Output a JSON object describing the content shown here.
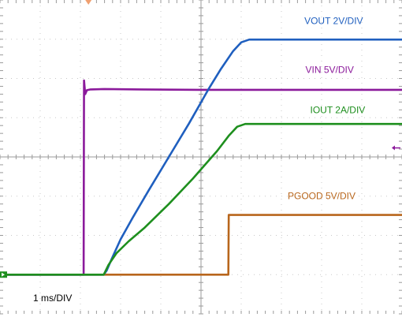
{
  "chart_data": {
    "type": "line",
    "title": "",
    "xlabel": "",
    "ylabel": "",
    "grid": true,
    "timebase_label": "1 ms/DIV",
    "x_unit": "ms",
    "xlim": [
      0,
      10
    ],
    "ylim": [
      -4,
      4
    ],
    "series": [
      {
        "name": "VOUT 2V/DIV",
        "color": "#1f5fbf",
        "label_pos": [
          8.3,
          3.39
        ],
        "x": [
          0,
          2.58,
          2.65,
          2.8,
          3.0,
          3.3,
          3.7,
          4.2,
          4.7,
          5.2,
          5.5,
          5.8,
          6.0,
          6.2,
          10
        ],
        "y": [
          -3.0,
          -3.0,
          -2.9,
          -2.55,
          -2.1,
          -1.55,
          -0.85,
          0.0,
          0.85,
          1.75,
          2.25,
          2.7,
          2.92,
          2.99,
          2.99
        ]
      },
      {
        "name": "VIN 5V/DIV",
        "color": "#8b1a9b",
        "label_pos": [
          8.2,
          2.14
        ],
        "x": [
          0,
          2.08,
          2.09,
          2.12,
          2.16,
          2.25,
          2.6,
          3.5,
          5.0,
          6.5,
          8.0,
          10
        ],
        "y": [
          -3.0,
          -3.0,
          1.95,
          1.6,
          1.7,
          1.72,
          1.73,
          1.72,
          1.71,
          1.71,
          1.71,
          1.71
        ]
      },
      {
        "name": "IOUT 2A/DIV",
        "color": "#1e8f1e",
        "label_pos": [
          8.4,
          1.12
        ],
        "x": [
          0,
          2.58,
          2.7,
          2.9,
          3.2,
          3.6,
          4.2,
          4.8,
          5.4,
          5.7,
          5.9,
          6.1,
          10
        ],
        "y": [
          -3.0,
          -3.0,
          -2.75,
          -2.45,
          -2.15,
          -1.8,
          -1.2,
          -0.55,
          0.15,
          0.55,
          0.77,
          0.84,
          0.84
        ]
      },
      {
        "name": "PGOOD 5V/DIV",
        "color": "#b8661c",
        "label_pos": [
          8.0,
          -1.08
        ],
        "x": [
          0,
          5.68,
          5.69,
          10
        ],
        "y": [
          -3.0,
          -3.0,
          -1.48,
          -1.48
        ]
      }
    ]
  }
}
